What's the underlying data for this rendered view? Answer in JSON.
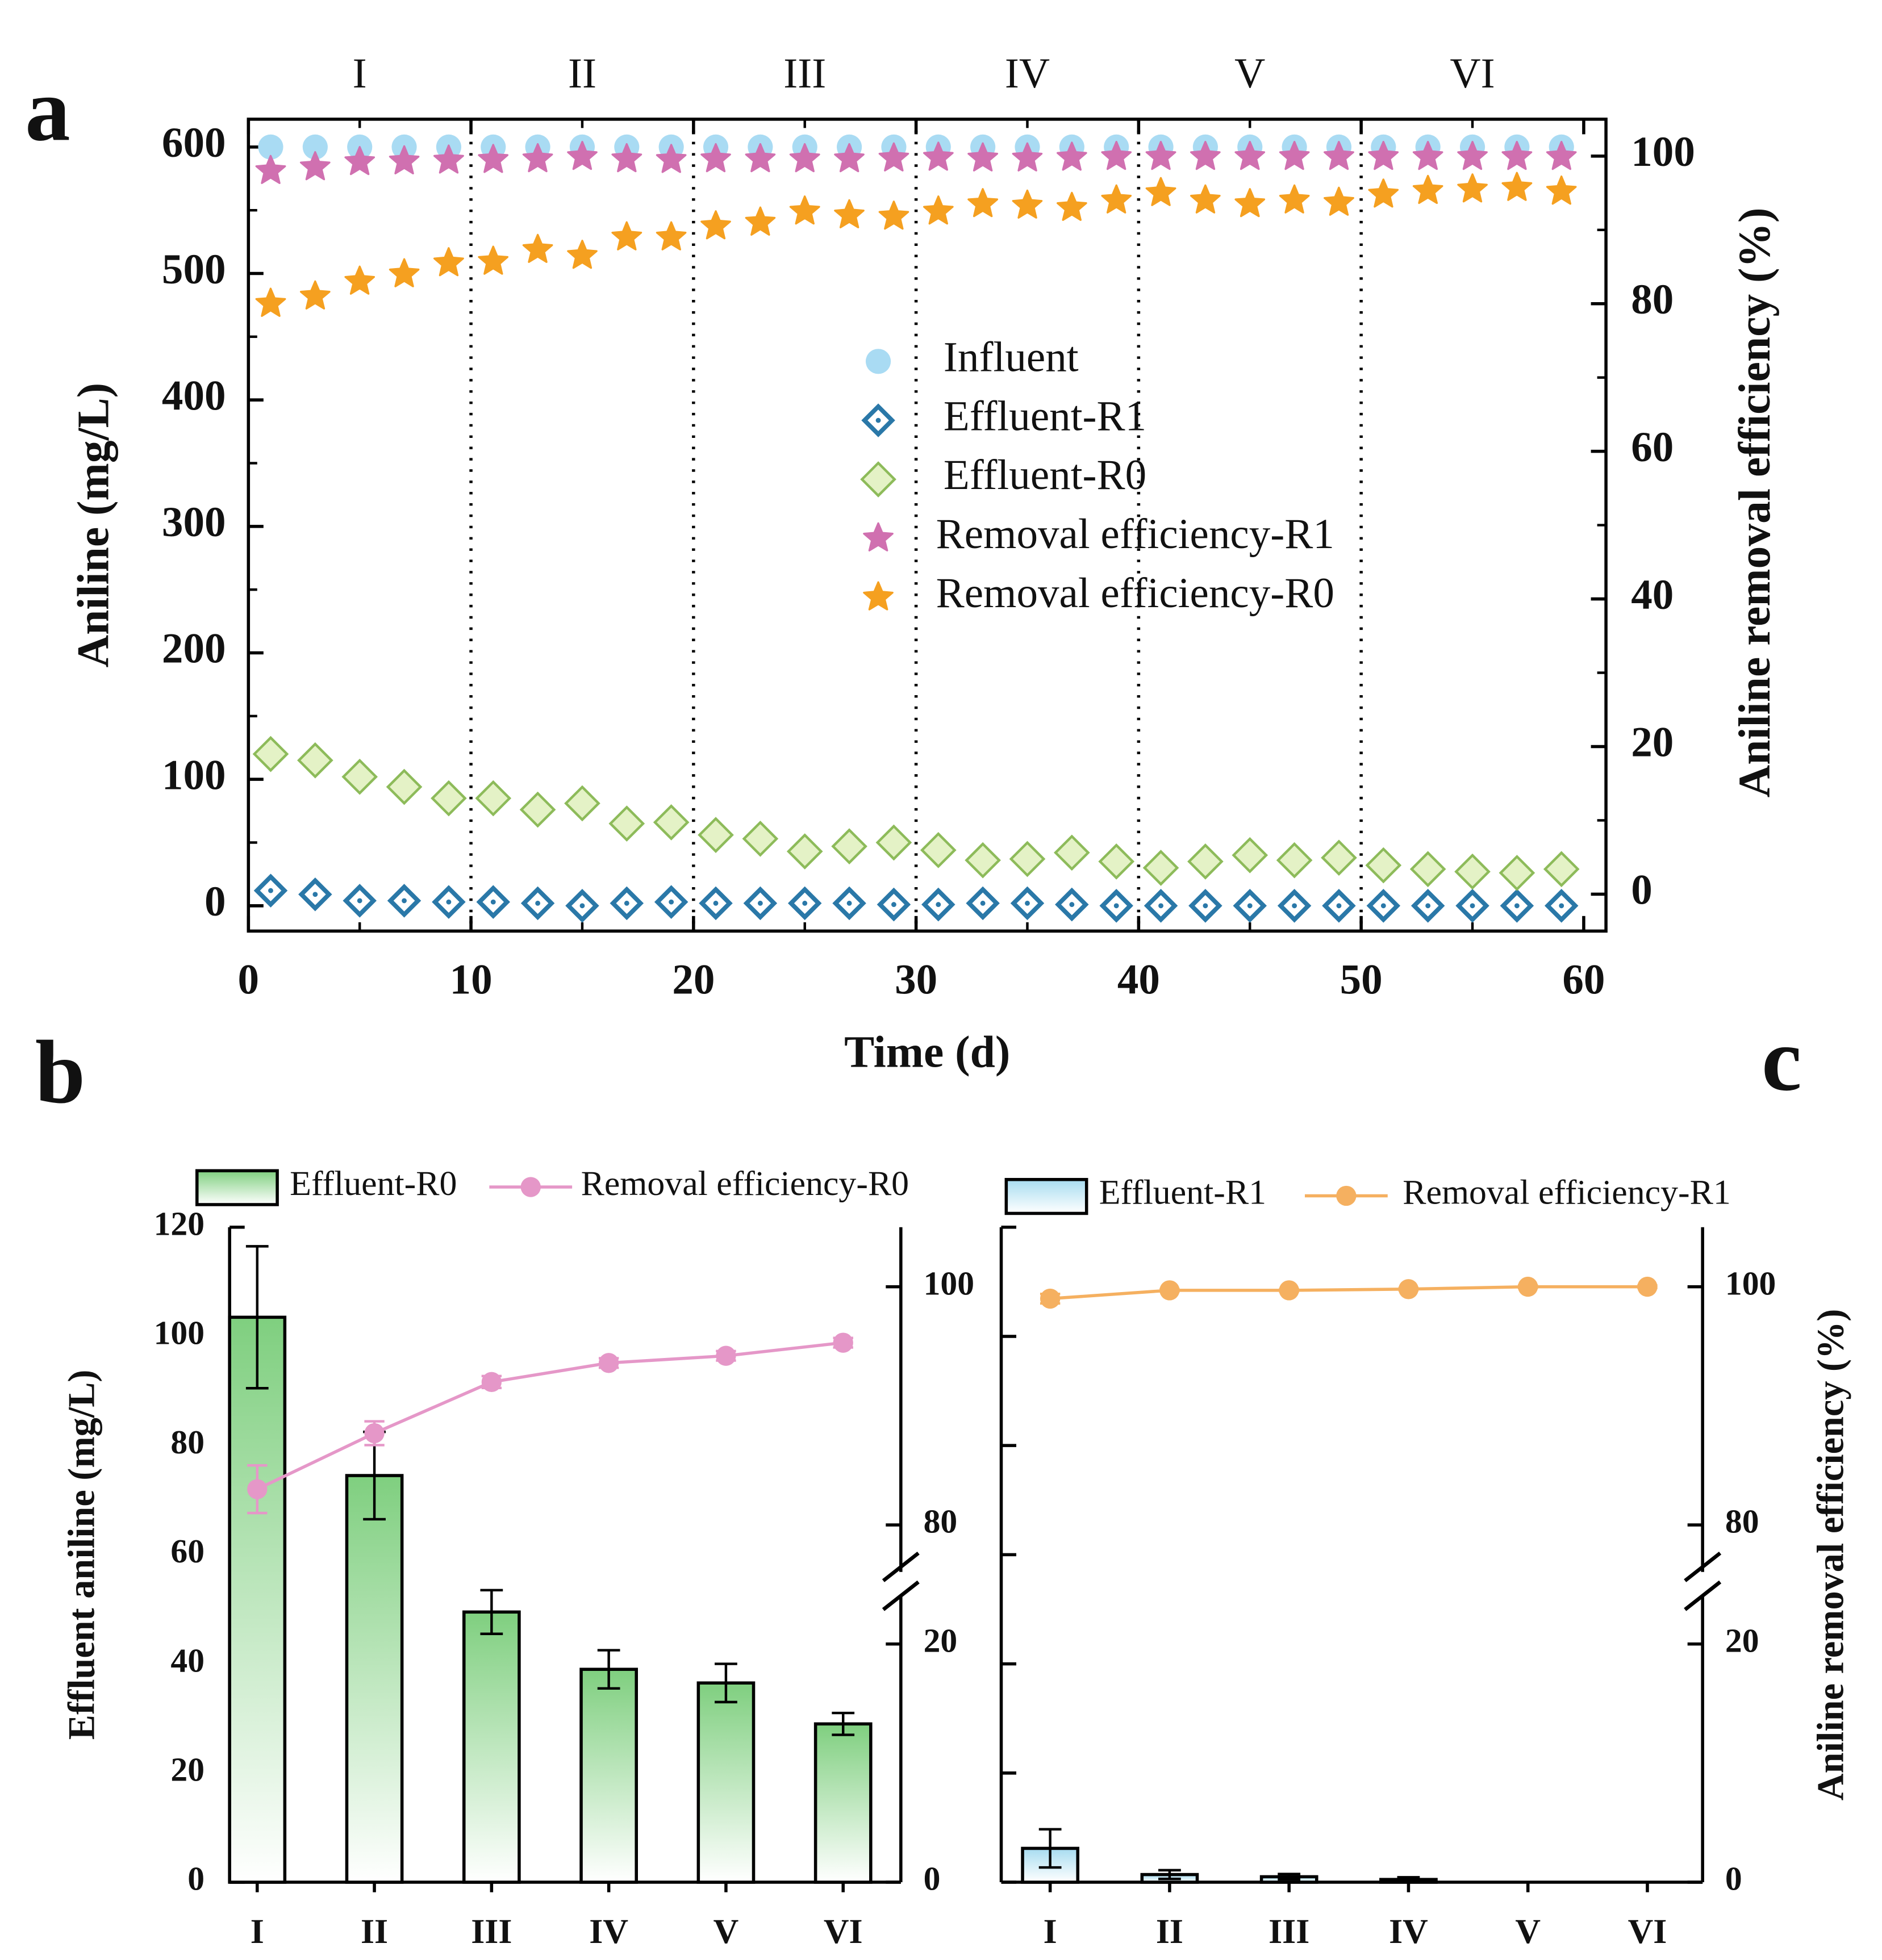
{
  "chart_data": [
    {
      "type": "scatter",
      "panel": "a",
      "x": [
        1,
        3,
        5,
        7,
        9,
        11,
        13,
        15,
        17,
        19,
        21,
        23,
        25,
        27,
        29,
        31,
        33,
        35,
        37,
        39,
        41,
        43,
        45,
        47,
        49,
        51,
        53,
        55,
        57,
        59
      ],
      "xlim": [
        0,
        61
      ],
      "xticks": [
        0,
        10,
        20,
        30,
        40,
        50,
        60
      ],
      "xlabel": "Time (d)",
      "ylim": [
        -20,
        622
      ],
      "yticks": [
        0,
        100,
        200,
        300,
        400,
        500,
        600
      ],
      "ylabel": "Aniline (mg/L)",
      "y2lim": [
        -5,
        105
      ],
      "y2ticks": [
        0,
        20,
        40,
        60,
        80,
        100
      ],
      "y2label": "Aniline removal efficiency (%)",
      "phase_labels": [
        "I",
        "II",
        "III",
        "IV",
        "V",
        "VI"
      ],
      "phase_boundaries": [
        10,
        20,
        30,
        40,
        50
      ],
      "series": [
        {
          "name": "Influent",
          "marker": "circle",
          "color": "#a9dbf3",
          "values": [
            600,
            600,
            600,
            600,
            600,
            600,
            600,
            600,
            600,
            600,
            600,
            600,
            600,
            600,
            600,
            600,
            600,
            600,
            600,
            600,
            600,
            600,
            600,
            600,
            600,
            600,
            600,
            600,
            600,
            600
          ]
        },
        {
          "name": "Effluent-R1",
          "marker": "diamond-dot",
          "color": "#2a78a8",
          "values": [
            12,
            9,
            4,
            4,
            3,
            3,
            2,
            0,
            2,
            3,
            2,
            2,
            2,
            2,
            1,
            1,
            2,
            2,
            1,
            0,
            0,
            0,
            0,
            0,
            0,
            0,
            0,
            0,
            0,
            0
          ]
        },
        {
          "name": "Effluent-R0",
          "marker": "diamond",
          "color": "#8dbb5a",
          "values": [
            120,
            115,
            102,
            94,
            85,
            85,
            76,
            81,
            65,
            66,
            56,
            53,
            43,
            47,
            50,
            44,
            36,
            37,
            42,
            35,
            30,
            35,
            40,
            36,
            38,
            32,
            29,
            27,
            26,
            29
          ]
        },
        {
          "name": "Removal efficiency-R1",
          "marker": "star",
          "color": "#d070b0",
          "axis": "y2",
          "values": [
            98,
            98.5,
            99.2,
            99.3,
            99.4,
            99.5,
            99.6,
            99.9,
            99.6,
            99.5,
            99.6,
            99.6,
            99.6,
            99.6,
            99.7,
            99.8,
            99.7,
            99.7,
            99.8,
            99.9,
            99.9,
            99.9,
            99.9,
            99.9,
            99.9,
            99.9,
            99.9,
            99.9,
            99.9,
            99.9
          ]
        },
        {
          "name": "Removal efficiency-R0",
          "marker": "star",
          "color": "#f5a020",
          "axis": "y2",
          "values": [
            80,
            81,
            83,
            84,
            85.5,
            85.7,
            87.3,
            86.5,
            89,
            89,
            90.5,
            91,
            92.5,
            92,
            91.8,
            92.5,
            93.5,
            93.3,
            93,
            94,
            95,
            94,
            93.5,
            94,
            93.7,
            94.8,
            95.3,
            95.5,
            95.7,
            95.2
          ]
        }
      ]
    },
    {
      "type": "combo",
      "panel": "b",
      "categories": [
        "I",
        "II",
        "III",
        "IV",
        "V",
        "VI"
      ],
      "ylim": [
        0,
        120
      ],
      "yticks": [
        0,
        20,
        40,
        60,
        80,
        100,
        120
      ],
      "ylabel": "Effluent aniline (mg/L)",
      "y2lim": [
        0,
        105
      ],
      "y2break": [
        25,
        75
      ],
      "y2ticks": [
        0,
        20,
        80,
        100
      ],
      "series": [
        {
          "name": "Effluent-R0",
          "kind": "bar",
          "color": "#7fcf7f",
          "values": [
            103.5,
            74.5,
            49.5,
            39,
            36.5,
            29
          ],
          "errors": [
            13,
            8,
            4,
            3.5,
            3.5,
            2
          ]
        },
        {
          "name": "Removal efficiency-R0",
          "kind": "line",
          "axis": "y2",
          "color": "#e597c8",
          "values": [
            83,
            87.7,
            92,
            93.6,
            94.2,
            95.3
          ],
          "errors": [
            2,
            1,
            0.5,
            0.4,
            0.4,
            0.4
          ]
        }
      ]
    },
    {
      "type": "combo",
      "panel": "c",
      "categories": [
        "I",
        "II",
        "III",
        "IV",
        "V",
        "VI"
      ],
      "ylim": [
        0,
        120
      ],
      "yticks": [
        0,
        20,
        40,
        60,
        80,
        100,
        120
      ],
      "ytick_labels": false,
      "y2lim": [
        0,
        105
      ],
      "y2break": [
        25,
        75
      ],
      "y2ticks": [
        0,
        20,
        80,
        100
      ],
      "y2label": "Aniline removal efficiency (%)",
      "series": [
        {
          "name": "Effluent-R1",
          "kind": "bar",
          "color": "#a7dcf0",
          "values": [
            6.2,
            1.4,
            1,
            0.5,
            0,
            0
          ],
          "errors": [
            3.5,
            0.8,
            0.5,
            0.4,
            0,
            0
          ]
        },
        {
          "name": "Removal efficiency-R1",
          "kind": "line",
          "axis": "y2",
          "color": "#f5b060",
          "values": [
            99,
            99.7,
            99.7,
            99.8,
            100,
            100
          ],
          "errors": [
            0.4,
            0.1,
            0.1,
            0.1,
            0.1,
            0.1
          ]
        }
      ]
    }
  ]
}
